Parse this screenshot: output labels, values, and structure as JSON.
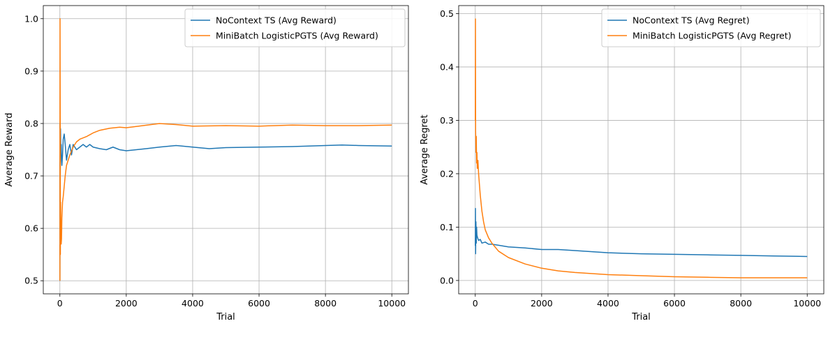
{
  "chart_data": [
    {
      "type": "line",
      "title": "",
      "xlabel": "Trial",
      "ylabel": "Average Reward",
      "xlim": [
        -500,
        10500
      ],
      "ylim": [
        0.475,
        1.025
      ],
      "xticks": [
        0,
        2000,
        4000,
        6000,
        8000,
        10000
      ],
      "xtick_labels": [
        "0",
        "2000",
        "4000",
        "6000",
        "8000",
        "10000"
      ],
      "yticks": [
        0.5,
        0.6,
        0.7,
        0.8,
        0.9,
        1.0
      ],
      "ytick_labels": [
        "0.5",
        "0.6",
        "0.7",
        "0.8",
        "0.9",
        "1.0"
      ],
      "grid": true,
      "legend_position": "upper-right",
      "series": [
        {
          "name": "NoContext TS (Avg Reward)",
          "color": "#1f77b4",
          "x": [
            1,
            5,
            10,
            20,
            30,
            40,
            50,
            60,
            80,
            100,
            130,
            160,
            200,
            250,
            300,
            350,
            400,
            450,
            500,
            600,
            700,
            800,
            900,
            1000,
            1200,
            1400,
            1600,
            1800,
            2000,
            2300,
            2600,
            3000,
            3500,
            4000,
            4500,
            5000,
            6000,
            7000,
            8000,
            8500,
            9000,
            10000
          ],
          "values": [
            0.5,
            0.8,
            0.69,
            0.79,
            0.74,
            0.76,
            0.73,
            0.72,
            0.74,
            0.77,
            0.78,
            0.76,
            0.73,
            0.75,
            0.76,
            0.74,
            0.76,
            0.755,
            0.75,
            0.755,
            0.76,
            0.755,
            0.76,
            0.755,
            0.752,
            0.75,
            0.755,
            0.75,
            0.748,
            0.75,
            0.752,
            0.755,
            0.758,
            0.755,
            0.752,
            0.754,
            0.755,
            0.756,
            0.758,
            0.759,
            0.758,
            0.757
          ]
        },
        {
          "name": "MiniBatch LogisticPGTS (Avg Reward)",
          "color": "#ff7f0e",
          "x": [
            1,
            5,
            10,
            15,
            20,
            30,
            40,
            50,
            60,
            80,
            100,
            130,
            160,
            200,
            250,
            300,
            400,
            500,
            600,
            800,
            1000,
            1200,
            1500,
            1800,
            2000,
            2500,
            3000,
            3500,
            4000,
            5000,
            6000,
            7000,
            8000,
            9000,
            10000
          ],
          "values": [
            0.5,
            1.0,
            0.8,
            0.55,
            0.65,
            0.6,
            0.57,
            0.58,
            0.62,
            0.65,
            0.66,
            0.68,
            0.7,
            0.72,
            0.73,
            0.74,
            0.755,
            0.765,
            0.77,
            0.775,
            0.782,
            0.787,
            0.791,
            0.793,
            0.792,
            0.796,
            0.8,
            0.798,
            0.795,
            0.796,
            0.795,
            0.797,
            0.796,
            0.796,
            0.797
          ]
        }
      ]
    },
    {
      "type": "line",
      "title": "",
      "xlabel": "Trial",
      "ylabel": "Average Regret",
      "xlim": [
        -500,
        10500
      ],
      "ylim": [
        -0.025,
        0.515
      ],
      "xticks": [
        0,
        2000,
        4000,
        6000,
        8000,
        10000
      ],
      "xtick_labels": [
        "0",
        "2000",
        "4000",
        "6000",
        "8000",
        "10000"
      ],
      "yticks": [
        0.0,
        0.1,
        0.2,
        0.3,
        0.4,
        0.5
      ],
      "ytick_labels": [
        "0.0",
        "0.1",
        "0.2",
        "0.3",
        "0.4",
        "0.5"
      ],
      "grid": true,
      "legend_position": "upper-right",
      "series": [
        {
          "name": "NoContext TS (Avg Regret)",
          "color": "#1f77b4",
          "x": [
            1,
            5,
            10,
            20,
            30,
            40,
            50,
            70,
            100,
            150,
            200,
            300,
            400,
            500,
            700,
            1000,
            1500,
            2000,
            2500,
            3000,
            4000,
            5000,
            6000,
            7000,
            8000,
            9000,
            10000
          ],
          "values": [
            0.065,
            0.135,
            0.05,
            0.11,
            0.07,
            0.1,
            0.085,
            0.08,
            0.075,
            0.077,
            0.07,
            0.072,
            0.068,
            0.068,
            0.066,
            0.063,
            0.061,
            0.058,
            0.058,
            0.056,
            0.052,
            0.05,
            0.049,
            0.048,
            0.047,
            0.046,
            0.045
          ]
        },
        {
          "name": "MiniBatch LogisticPGTS (Avg Regret)",
          "color": "#ff7f0e",
          "x": [
            1,
            5,
            10,
            20,
            30,
            40,
            50,
            60,
            80,
            100,
            150,
            200,
            250,
            300,
            400,
            500,
            700,
            1000,
            1500,
            2000,
            2500,
            3000,
            4000,
            5000,
            6000,
            7000,
            8000,
            9000,
            10000
          ],
          "values": [
            0.3,
            0.49,
            0.28,
            0.24,
            0.27,
            0.22,
            0.24,
            0.21,
            0.225,
            0.2,
            0.16,
            0.13,
            0.11,
            0.095,
            0.08,
            0.07,
            0.055,
            0.043,
            0.031,
            0.023,
            0.018,
            0.015,
            0.011,
            0.009,
            0.007,
            0.006,
            0.005,
            0.005,
            0.005
          ]
        }
      ]
    }
  ]
}
